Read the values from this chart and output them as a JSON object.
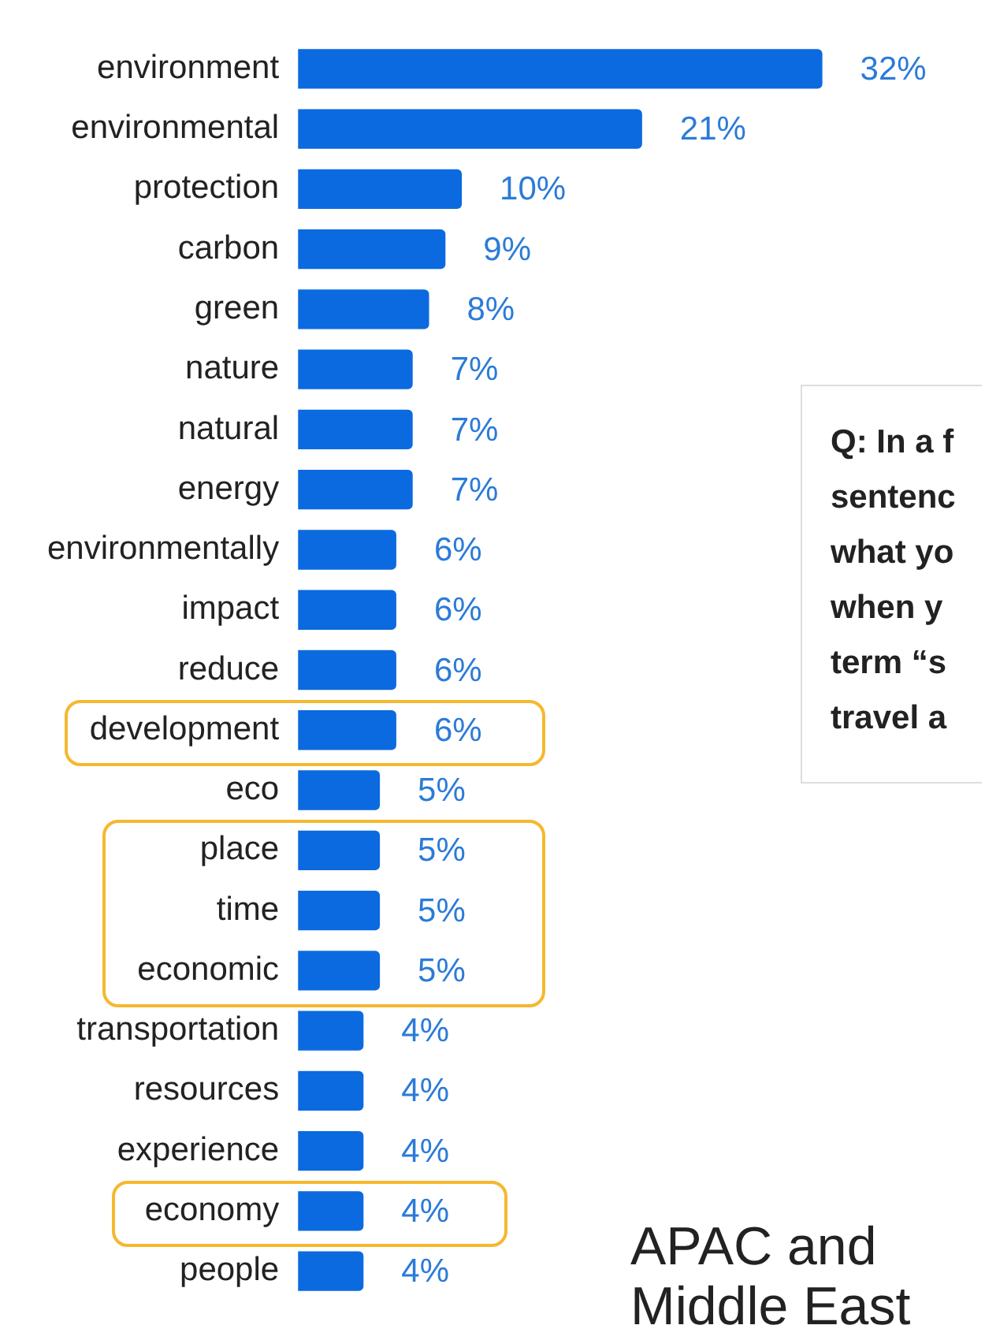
{
  "chart_data": {
    "type": "bar",
    "orientation": "horizontal",
    "categories": [
      "environment",
      "environmental",
      "protection",
      "carbon",
      "green",
      "nature",
      "natural",
      "energy",
      "environmentally",
      "impact",
      "reduce",
      "development",
      "eco",
      "place",
      "time",
      "economic",
      "transportation",
      "resources",
      "experience",
      "economy",
      "people"
    ],
    "values": [
      32,
      21,
      10,
      9,
      8,
      7,
      7,
      7,
      6,
      6,
      6,
      6,
      5,
      5,
      5,
      5,
      4,
      4,
      4,
      4,
      4
    ],
    "value_labels": [
      "32%",
      "21%",
      "10%",
      "9%",
      "8%",
      "7%",
      "7%",
      "7%",
      "6%",
      "6%",
      "6%",
      "6%",
      "5%",
      "5%",
      "5%",
      "5%",
      "4%",
      "4%",
      "4%",
      "4%",
      "4%"
    ],
    "color": "#0b6ae0",
    "legend": false,
    "tick_labels": "y",
    "annotations": [
      "Q: In a f\nsentenc\nwhat yo\nwhen y\nterm “s\ntravel a",
      "APAC and Middle East"
    ]
  }
}
